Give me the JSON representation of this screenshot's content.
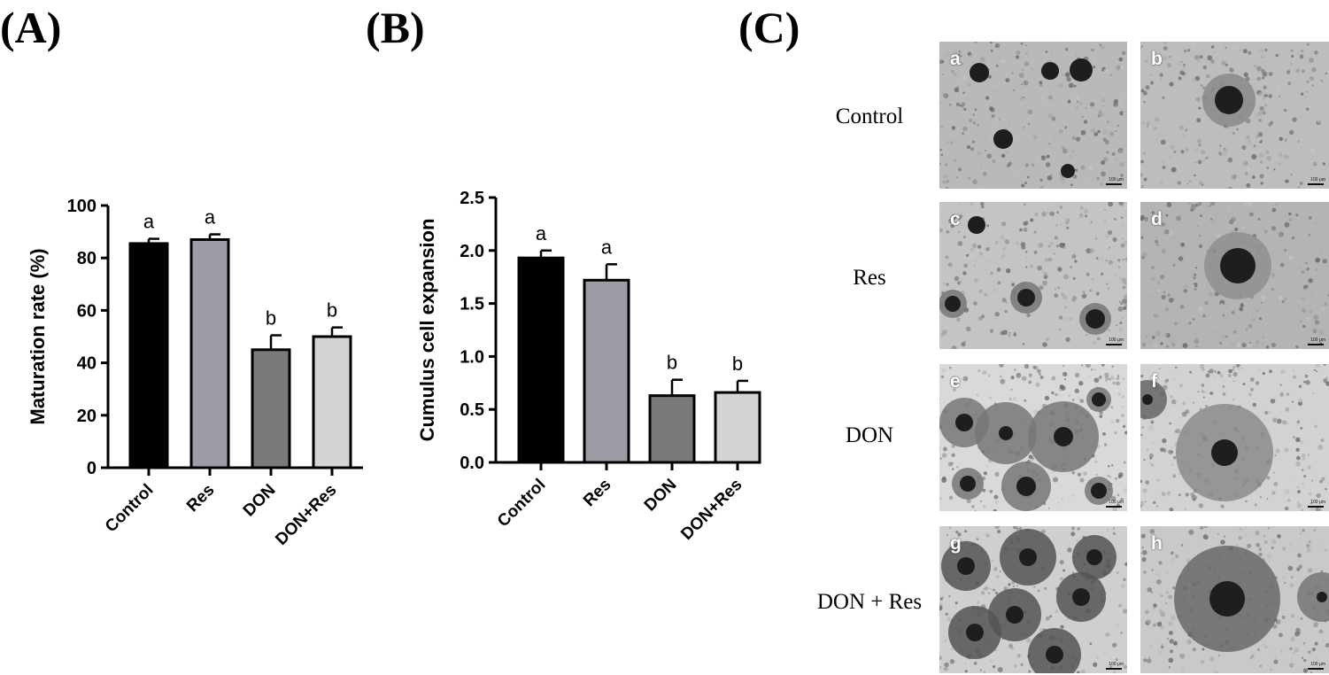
{
  "panels": {
    "a": "(A)",
    "b": "(B)",
    "c": "(C)"
  },
  "chart_data": [
    {
      "type": "bar",
      "categories": [
        "Control",
        "Res",
        "DON",
        "DON+Res"
      ],
      "values": [
        85.5,
        87.0,
        45.0,
        50.0
      ],
      "errors": [
        1.8,
        2.0,
        5.5,
        3.5
      ],
      "letters": [
        "a",
        "a",
        "b",
        "b"
      ],
      "colors": [
        "#000000",
        "#9c9ca4",
        "#7a7a7a",
        "#d4d4d4"
      ],
      "xlabel": "",
      "ylabel": "Maturation rate (%)",
      "ylim": [
        0,
        100
      ],
      "yticks": [
        0,
        20,
        40,
        60,
        80,
        100
      ],
      "ytick_labels": [
        "0",
        "20",
        "40",
        "60",
        "80",
        "100"
      ],
      "grid": false
    },
    {
      "type": "bar",
      "categories": [
        "Control",
        "Res",
        "DON",
        "DON+Res"
      ],
      "values": [
        1.93,
        1.72,
        0.63,
        0.66
      ],
      "errors": [
        0.07,
        0.15,
        0.15,
        0.11
      ],
      "letters": [
        "a",
        "a",
        "b",
        "b"
      ],
      "colors": [
        "#000000",
        "#9c9ca4",
        "#7a7a7a",
        "#d4d4d4"
      ],
      "xlabel": "",
      "ylabel": "Cumulus cell expansion",
      "ylim": [
        0,
        2.5
      ],
      "yticks": [
        0,
        0.5,
        1.0,
        1.5,
        2.0,
        2.5
      ],
      "ytick_labels": [
        "0.0",
        "0.5",
        "1.0",
        "1.5",
        "2.0",
        "2.5"
      ],
      "grid": false
    }
  ],
  "micrographs": {
    "rows": [
      {
        "label": "Control",
        "cells": [
          {
            "letter": "a"
          },
          {
            "letter": "b"
          }
        ]
      },
      {
        "label": "Res",
        "cells": [
          {
            "letter": "c"
          },
          {
            "letter": "d"
          }
        ]
      },
      {
        "label": "DON",
        "cells": [
          {
            "letter": "e"
          },
          {
            "letter": "f"
          }
        ]
      },
      {
        "label": "DON + Res",
        "cells": [
          {
            "letter": "g"
          },
          {
            "letter": "h"
          }
        ]
      }
    ],
    "scale_text": "100 μm"
  }
}
